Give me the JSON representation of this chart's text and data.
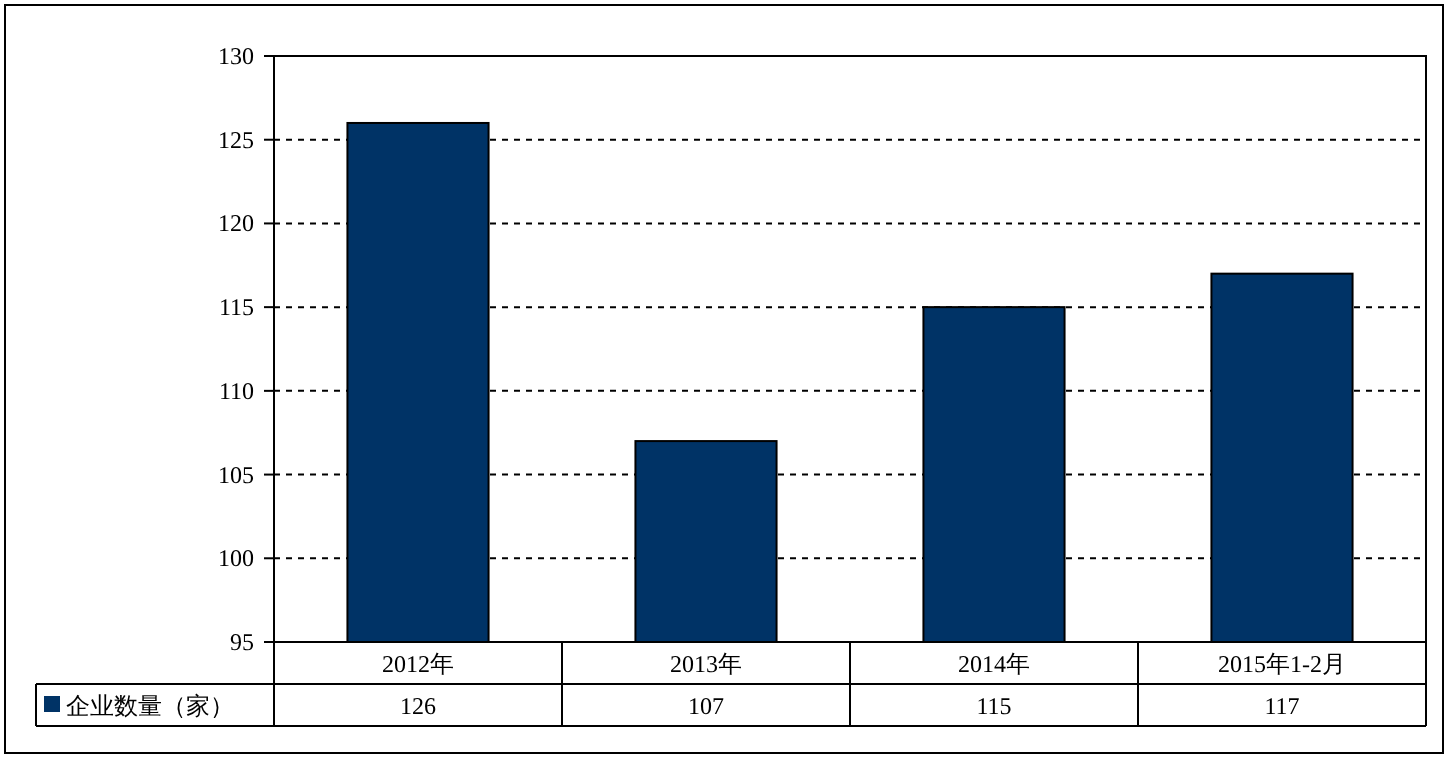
{
  "chart_data": {
    "type": "bar",
    "categories": [
      "2012年",
      "2013年",
      "2014年",
      "2015年1-2月"
    ],
    "series": [
      {
        "name": "企业数量（家）",
        "color": "#003366",
        "values": [
          126,
          107,
          115,
          117
        ]
      }
    ],
    "ylim": [
      95,
      130
    ],
    "yticks": [
      95,
      100,
      105,
      110,
      115,
      120,
      125,
      130
    ],
    "grid": "y",
    "data_labels": true,
    "legend": "bottom"
  }
}
